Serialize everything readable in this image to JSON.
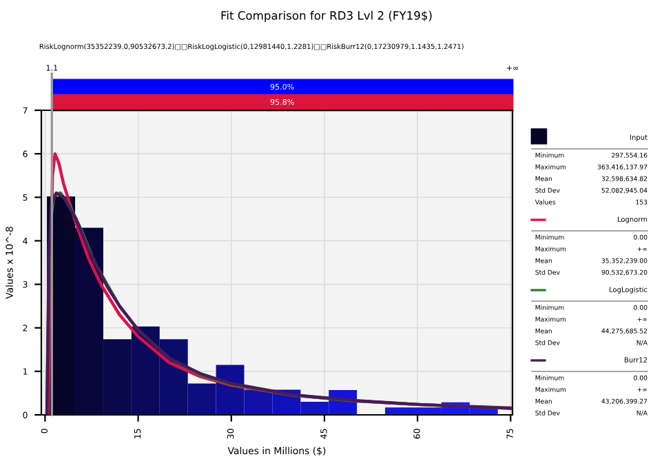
{
  "chart_data": {
    "type": "histogram",
    "title": "Fit Comparison for RD3 Lvl 2 (FY19$)",
    "subtitle": "RiskLognorm(35352239.0,90532673.2)□□RiskLogLogistic(0,12981440,1.2281)□□RiskBurr12(0,17230979,1.1435,1.2471)",
    "xlabel": "Values in Millions ($)",
    "ylabel": "Values x 10^-8",
    "bins": [
      0.3,
      4.84,
      9.38,
      13.92,
      18.46,
      23.0,
      27.54,
      32.08,
      36.62,
      41.16,
      45.7,
      50.24,
      54.78,
      59.32,
      63.86,
      68.4,
      72.94
    ],
    "series": [
      {
        "name": "Input",
        "values": [
          5.02,
          4.3,
          1.74,
          2.03,
          1.74,
          0.72,
          1.15,
          0.58,
          0.58,
          0.3,
          0.57,
          0,
          0.17,
          0.17,
          0.29,
          0.18
        ],
        "colors": [
          "#05052a",
          "#06063a",
          "#08084a",
          "#0a0a5a",
          "#0b0b6c",
          "#0d0d80",
          "#0e0e92",
          "#1010a6",
          "#1111b8",
          "#1313c8",
          "#1414d6",
          "#1515e0",
          "#1616e8",
          "#1717ee",
          "#1818f4",
          "#1919fa"
        ]
      },
      {
        "name": "Lognorm",
        "type": "line",
        "color": "#e0104a",
        "x": [
          0.5,
          0.8,
          1.2,
          1.6,
          2.2,
          3,
          5,
          7,
          9,
          12,
          15,
          20,
          25,
          30,
          40,
          50,
          60,
          75
        ],
        "values": [
          0,
          3.0,
          5.5,
          6.0,
          5.8,
          5.3,
          4.4,
          3.6,
          3.0,
          2.3,
          1.8,
          1.2,
          0.88,
          0.68,
          0.45,
          0.32,
          0.24,
          0.16
        ]
      },
      {
        "name": "LogLogistic",
        "type": "line",
        "color": "#2e7d32",
        "x": [
          0.3,
          0.6,
          1,
          1.5,
          2.5,
          4,
          6,
          8,
          10,
          12,
          15,
          20,
          25,
          30,
          40,
          50,
          60,
          75
        ],
        "values": [
          0,
          3.0,
          4.6,
          5.05,
          5.1,
          4.8,
          4.2,
          3.5,
          3.0,
          2.5,
          1.95,
          1.3,
          0.92,
          0.7,
          0.45,
          0.32,
          0.24,
          0.15
        ]
      },
      {
        "name": "Burr12",
        "type": "line",
        "color": "#4a1a5a",
        "x": [
          0.3,
          0.6,
          1,
          1.8,
          3,
          5,
          7,
          10,
          12,
          15,
          20,
          25,
          30,
          40,
          50,
          60,
          75
        ],
        "values": [
          0,
          3.5,
          4.8,
          5.1,
          5.0,
          4.5,
          3.8,
          2.95,
          2.5,
          1.95,
          1.3,
          0.95,
          0.72,
          0.46,
          0.33,
          0.24,
          0.15
        ]
      }
    ],
    "xlim": [
      -0.6,
      75.3
    ],
    "xticks": [
      0,
      15,
      30,
      45,
      60,
      75
    ],
    "ylim": [
      0,
      7
    ],
    "yticks": [
      0,
      1,
      2,
      3,
      4,
      5,
      6,
      7
    ],
    "grid": true,
    "legend": "right",
    "ref_lines": [
      {
        "axis": "x",
        "value": 1.1,
        "label": "1.1",
        "color": "#999999"
      }
    ],
    "annotations": [
      "+∞",
      "95.0%",
      "95.8%",
      "Minimum",
      "297,554.16",
      "Maximum",
      "363,416,137.97",
      "Mean",
      "32,598,634.82",
      "Std Dev",
      "52,082,945.04",
      "Values",
      "153",
      "Minimum",
      "0.00",
      "Maximum",
      "+∞",
      "Mean",
      "35,352,239.00",
      "Std Dev",
      "90,532,673.20",
      "Minimum",
      "0.00",
      "Maximum",
      "+∞",
      "Mean",
      "44,275,685.52",
      "Std Dev",
      "N/A",
      "Minimum",
      "0.00",
      "Maximum",
      "+∞",
      "Mean",
      "43,206,399.27",
      "Std Dev",
      "N/A"
    ]
  }
}
